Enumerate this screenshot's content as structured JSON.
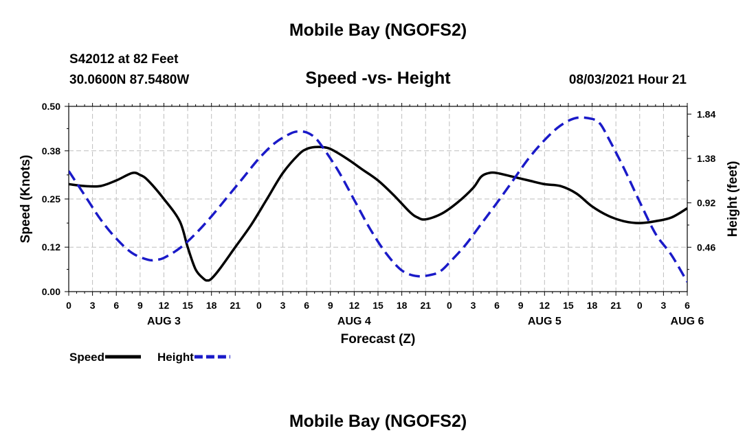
{
  "header": {
    "title": "Mobile Bay (NGOFS2)",
    "station": "S42012 at 82 Feet",
    "coords": "30.0600N  87.5480W",
    "subtitle": "Speed -vs- Height",
    "datetime": "08/03/2021 Hour 21"
  },
  "footer": {
    "title": "Mobile Bay (NGOFS2)"
  },
  "chart_data": {
    "type": "line",
    "xlabel": "Forecast (Z)",
    "ylabel_left": "Speed (Knots)",
    "ylabel_right": "Height (feet)",
    "x_range": [
      0,
      78
    ],
    "x_ticks": [
      0,
      3,
      6,
      9,
      12,
      15,
      18,
      21,
      24,
      27,
      30,
      33,
      36,
      39,
      42,
      45,
      48,
      51,
      54,
      57,
      60,
      63,
      66,
      69,
      72,
      75,
      78
    ],
    "x_tick_labels": [
      "0",
      "3",
      "6",
      "9",
      "12",
      "15",
      "18",
      "21",
      "0",
      "3",
      "6",
      "9",
      "12",
      "15",
      "18",
      "21",
      "0",
      "3",
      "6",
      "9",
      "12",
      "15",
      "18",
      "21",
      "0",
      "3",
      "6"
    ],
    "day_labels": [
      {
        "hour": 12,
        "label": "AUG 3"
      },
      {
        "hour": 36,
        "label": "AUG 4"
      },
      {
        "hour": 60,
        "label": "AUG 5"
      },
      {
        "hour": 78,
        "label": "AUG 6"
      }
    ],
    "y_left_range": [
      0,
      0.5
    ],
    "y_left_ticks": [
      0.0,
      0.12,
      0.25,
      0.38,
      0.5
    ],
    "y_left_tick_labels": [
      "0.00",
      "0.12",
      "0.25",
      "0.38",
      "0.50"
    ],
    "y_right_range": [
      0.0,
      1.92
    ],
    "y_right_ticks": [
      0.46,
      0.92,
      1.38,
      1.84
    ],
    "y_right_tick_labels": [
      "0.46",
      "0.92",
      "1.38",
      "1.84"
    ],
    "grid": true,
    "legend": "bottom-left",
    "series": [
      {
        "name": "Speed",
        "axis": "left",
        "color": "#000000",
        "dash": "solid",
        "x": [
          0,
          2,
          4,
          6,
          8,
          9,
          10,
          12,
          14,
          15,
          16,
          17,
          17.5,
          18,
          19,
          21,
          23,
          25,
          27,
          29,
          30,
          31,
          32,
          33,
          35,
          37,
          39,
          41,
          43,
          44,
          45,
          47,
          49,
          51,
          52,
          53,
          54,
          56,
          58,
          60,
          62,
          64,
          66,
          68,
          70,
          72,
          74,
          76,
          78
        ],
        "y": [
          0.29,
          0.285,
          0.285,
          0.3,
          0.32,
          0.315,
          0.3,
          0.25,
          0.19,
          0.12,
          0.06,
          0.035,
          0.03,
          0.035,
          0.06,
          0.12,
          0.18,
          0.25,
          0.32,
          0.37,
          0.385,
          0.39,
          0.39,
          0.385,
          0.36,
          0.33,
          0.3,
          0.26,
          0.215,
          0.2,
          0.195,
          0.21,
          0.24,
          0.28,
          0.31,
          0.32,
          0.32,
          0.31,
          0.3,
          0.29,
          0.285,
          0.265,
          0.23,
          0.205,
          0.19,
          0.185,
          0.19,
          0.2,
          0.225
        ]
      },
      {
        "name": "Height",
        "axis": "right",
        "color": "#1a1ac8",
        "dash": "dashed",
        "x": [
          0,
          2,
          4,
          6,
          8,
          10,
          11,
          12,
          14,
          16,
          18,
          20,
          22,
          24,
          26,
          28,
          29,
          30,
          31,
          32,
          34,
          36,
          38,
          40,
          42,
          44,
          46,
          47,
          48,
          50,
          52,
          54,
          56,
          58,
          60,
          62,
          64,
          66,
          67,
          68,
          70,
          72,
          74,
          76,
          78
        ],
        "y": [
          1.25,
          1.0,
          0.75,
          0.55,
          0.4,
          0.33,
          0.33,
          0.35,
          0.45,
          0.6,
          0.78,
          0.98,
          1.18,
          1.38,
          1.54,
          1.64,
          1.66,
          1.65,
          1.6,
          1.5,
          1.25,
          0.95,
          0.65,
          0.4,
          0.22,
          0.16,
          0.18,
          0.22,
          0.3,
          0.48,
          0.7,
          0.92,
          1.15,
          1.38,
          1.57,
          1.72,
          1.8,
          1.79,
          1.74,
          1.6,
          1.28,
          0.93,
          0.6,
          0.38,
          0.1
        ]
      }
    ]
  }
}
